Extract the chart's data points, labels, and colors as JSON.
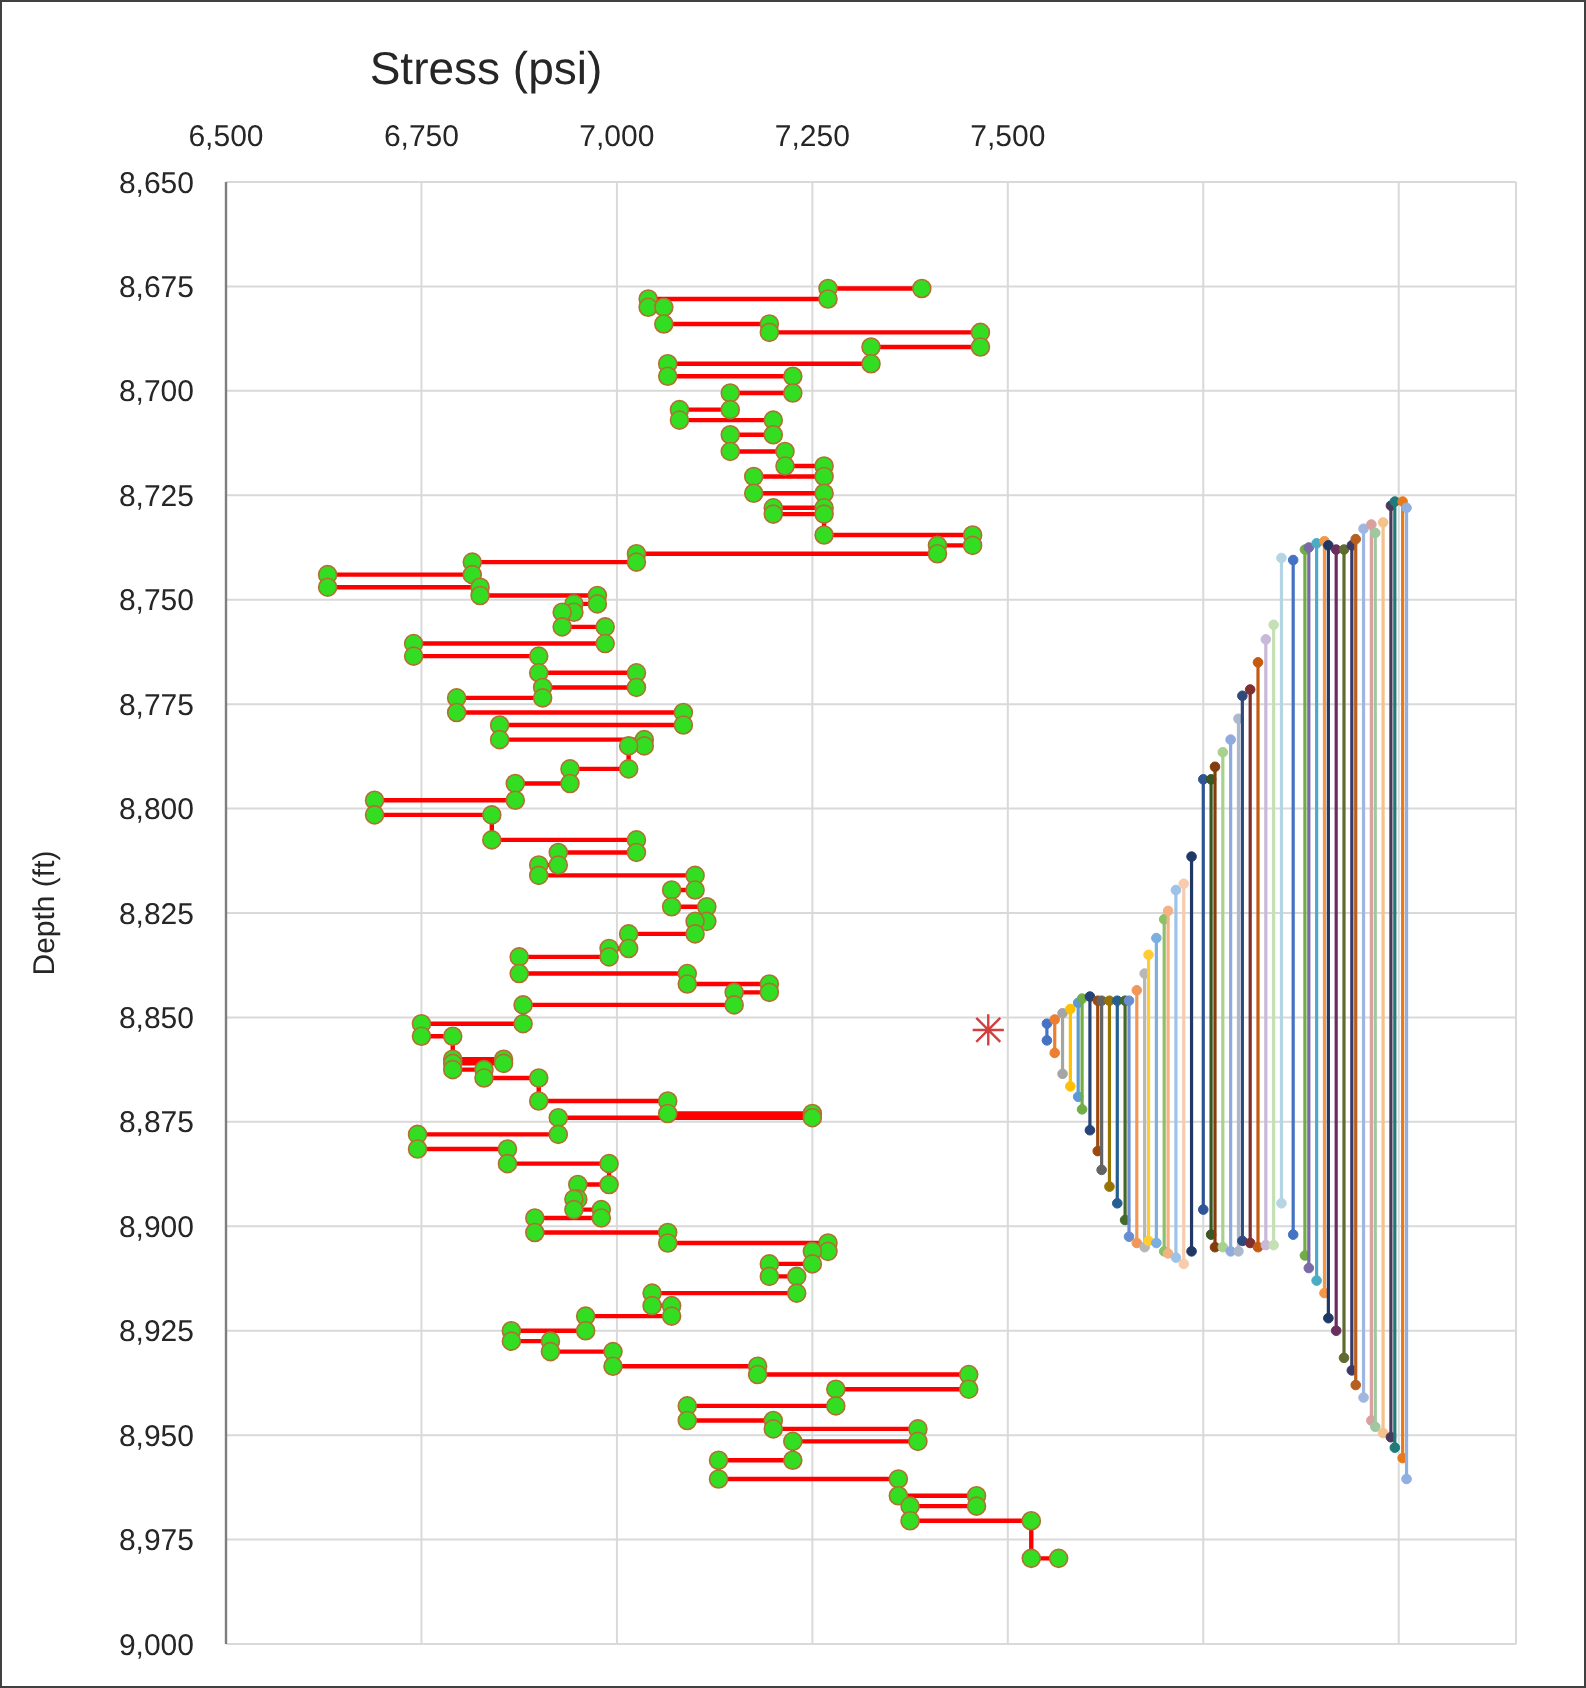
{
  "chart_data": {
    "type": "line",
    "xlabel": "Stress (psi)",
    "ylabel": "Depth (ft)",
    "grid": true,
    "xlim": [
      6500,
      8150
    ],
    "xticks": [
      {
        "value": 6500,
        "label": "6,500"
      },
      {
        "value": 6750,
        "label": "6,750"
      },
      {
        "value": 7000,
        "label": "7,000"
      },
      {
        "value": 7250,
        "label": "7,250"
      },
      {
        "value": 7500,
        "label": "7,500"
      },
      {
        "value": 7750,
        "label": null
      },
      {
        "value": 8000,
        "label": null
      }
    ],
    "ylim": [
      9000,
      8650
    ],
    "yticks": [
      {
        "value": 8650,
        "label": "8,650"
      },
      {
        "value": 8675,
        "label": "8,675"
      },
      {
        "value": 8700,
        "label": "8,700"
      },
      {
        "value": 8725,
        "label": "8,725"
      },
      {
        "value": 8750,
        "label": "8,750"
      },
      {
        "value": 8775,
        "label": "8,775"
      },
      {
        "value": 8800,
        "label": "8,800"
      },
      {
        "value": 8825,
        "label": "8,825"
      },
      {
        "value": 8850,
        "label": "8,850"
      },
      {
        "value": 8875,
        "label": "8,875"
      },
      {
        "value": 8900,
        "label": "8,900"
      },
      {
        "value": 8925,
        "label": "8,925"
      },
      {
        "value": 8950,
        "label": "8,950"
      },
      {
        "value": 8975,
        "label": "8,975"
      },
      {
        "value": 9000,
        "label": "9,000"
      }
    ],
    "series": [
      {
        "type": "line",
        "color": "#ff0000",
        "marker": "none",
        "x": [
          7390,
          7270,
          7270,
          7040,
          7040,
          7060,
          7060,
          7195,
          7195,
          7465,
          7465,
          7325,
          7325,
          7065,
          7065,
          7225,
          7225,
          7145,
          7145,
          7080,
          7080,
          7200,
          7200,
          7145,
          7145,
          7215,
          7215,
          7265,
          7265,
          7175,
          7175,
          7265,
          7265,
          7200,
          7200,
          7265,
          7265,
          7455,
          7455,
          7410,
          7410,
          7025,
          7025,
          6815,
          6815,
          6630,
          6630,
          6825,
          6825,
          6975,
          6975,
          6945,
          6945,
          6930,
          6930,
          6985,
          6985,
          6740,
          6740,
          6900,
          6900,
          7025,
          7025,
          6905,
          6905,
          6795,
          6795,
          7085,
          7085,
          6850,
          6850,
          7035,
          7035,
          7015,
          7015,
          6940,
          6940,
          6870,
          6870,
          6690,
          6690,
          6840,
          6840,
          7025,
          7025,
          6925,
          6925,
          6900,
          6900,
          7100,
          7100,
          7070,
          7070,
          7115,
          7115,
          7100,
          7100,
          7015,
          7015,
          6990,
          6990,
          6875,
          6875,
          7090,
          7090,
          7195,
          7195,
          7150,
          7150,
          6880,
          6880,
          6750,
          6750,
          6790,
          6790,
          6855,
          6855,
          6790,
          6790,
          6830,
          6830,
          6900,
          6900,
          7065,
          7065,
          7250,
          7250,
          6925,
          6925,
          6745,
          6745,
          6860,
          6860,
          6990,
          6990,
          6950,
          6950,
          6945,
          6945,
          6980,
          6980,
          6895,
          6895,
          7065,
          7065,
          7270,
          7270,
          7250,
          7250,
          7195,
          7195,
          7230,
          7230,
          7045,
          7045,
          7070,
          7070,
          6960,
          6960,
          6865,
          6865,
          6915,
          6915,
          6995,
          6995,
          7180,
          7180,
          7450,
          7450,
          7280,
          7280,
          7090,
          7090,
          7200,
          7200,
          7385,
          7385,
          7225,
          7225,
          7130,
          7130,
          7360,
          7360,
          7460,
          7460,
          7375,
          7375,
          7530,
          7530,
          7565
        ],
        "values": [
          8675.5,
          8675.5,
          8678,
          8678,
          8680,
          8680,
          8684,
          8684,
          8686,
          8686,
          8689.5,
          8689.5,
          8693.5,
          8693.5,
          8696.5,
          8696.5,
          8700.5,
          8700.5,
          8704.5,
          8704.5,
          8707,
          8707,
          8710.5,
          8710.5,
          8714.5,
          8714.5,
          8718,
          8718,
          8720.5,
          8720.5,
          8724.5,
          8724.5,
          8728,
          8728,
          8729.5,
          8729.5,
          8734.5,
          8734.5,
          8737,
          8737,
          8739,
          8739,
          8741,
          8741,
          8744,
          8744,
          8747,
          8747,
          8749,
          8749,
          8751,
          8751,
          8753,
          8753,
          8756.5,
          8756.5,
          8760.5,
          8760.5,
          8763.5,
          8763.5,
          8767.5,
          8767.5,
          8771,
          8771,
          8773.5,
          8773.5,
          8777,
          8777,
          8780,
          8780,
          8783.5,
          8783.5,
          8785,
          8785,
          8790.5,
          8790.5,
          8794,
          8794,
          8798,
          8798,
          8801.5,
          8801.5,
          8807.5,
          8807.5,
          8810.5,
          8810.5,
          8813.5,
          8813.5,
          8816,
          8816,
          8819.5,
          8819.5,
          8823.5,
          8823.5,
          8827,
          8827,
          8830,
          8830,
          8833.5,
          8833.5,
          8835.5,
          8835.5,
          8839.5,
          8839.5,
          8842,
          8842,
          8844,
          8844,
          8847,
          8847,
          8851.5,
          8851.5,
          8854.5,
          8854.5,
          8860,
          8860,
          8861,
          8861,
          8862.5,
          8862.5,
          8864.5,
          8864.5,
          8870,
          8870,
          8873,
          8873,
          8874,
          8874,
          8878,
          8878,
          8881.5,
          8881.5,
          8885,
          8885,
          8890,
          8890,
          8893.5,
          8893.5,
          8896,
          8896,
          8898,
          8898,
          8901.5,
          8901.5,
          8904,
          8904,
          8906,
          8906,
          8909,
          8909,
          8912,
          8912,
          8916,
          8916,
          8919,
          8919,
          8921.5,
          8921.5,
          8925,
          8925,
          8927.5,
          8927.5,
          8930,
          8930,
          8933.5,
          8933.5,
          8935.5,
          8935.5,
          8939,
          8939,
          8943,
          8943,
          8946.5,
          8946.5,
          8948.5,
          8948.5,
          8951.5,
          8951.5,
          8956,
          8956,
          8960.5,
          8960.5,
          8964.5,
          8964.5,
          8967,
          8967,
          8970.5,
          8970.5,
          8979.5,
          8979.5
        ]
      },
      {
        "type": "scatter",
        "color": "#33dd22",
        "marker": "circle",
        "x": [
          7390,
          7270,
          7270,
          7040,
          7040,
          7060,
          7060,
          7195,
          7195,
          7465,
          7465,
          7325,
          7325,
          7065,
          7065,
          7225,
          7225,
          7145,
          7145,
          7080,
          7080,
          7200,
          7200,
          7145,
          7145,
          7215,
          7215,
          7265,
          7265,
          7175,
          7175,
          7265,
          7265,
          7200,
          7200,
          7265,
          7265,
          7455,
          7455,
          7410,
          7410,
          7025,
          7025,
          6815,
          6815,
          6630,
          6630,
          6825,
          6825,
          6975,
          6975,
          6945,
          6945,
          6930,
          6930,
          6985,
          6985,
          6740,
          6740,
          6900,
          6900,
          7025,
          7025,
          6905,
          6905,
          6795,
          6795,
          7085,
          7085,
          6850,
          6850,
          7035,
          7035,
          7015,
          7015,
          6940,
          6940,
          6870,
          6870,
          6690,
          6690,
          6840,
          6840,
          7025,
          7025,
          6925,
          6925,
          6900,
          6900,
          7100,
          7100,
          7070,
          7070,
          7115,
          7115,
          7100,
          7100,
          7015,
          7015,
          6990,
          6990,
          6875,
          6875,
          7090,
          7090,
          7195,
          7195,
          7150,
          7150,
          6880,
          6880,
          6750,
          6750,
          6790,
          6790,
          6855,
          6855,
          6790,
          6790,
          6830,
          6830,
          6900,
          6900,
          7065,
          7065,
          7250,
          7250,
          6925,
          6925,
          6745,
          6745,
          6860,
          6860,
          6990,
          6990,
          6950,
          6950,
          6945,
          6945,
          6980,
          6980,
          6895,
          6895,
          7065,
          7065,
          7270,
          7270,
          7250,
          7250,
          7195,
          7195,
          7230,
          7230,
          7045,
          7045,
          7070,
          7070,
          6960,
          6960,
          6865,
          6865,
          6915,
          6915,
          6995,
          6995,
          7180,
          7180,
          7450,
          7450,
          7280,
          7280,
          7090,
          7090,
          7200,
          7200,
          7385,
          7385,
          7225,
          7225,
          7130,
          7130,
          7360,
          7360,
          7460,
          7460,
          7375,
          7375,
          7530,
          7530,
          7565
        ],
        "values": [
          8675.5,
          8675.5,
          8678,
          8678,
          8680,
          8680,
          8684,
          8684,
          8686,
          8686,
          8689.5,
          8689.5,
          8693.5,
          8693.5,
          8696.5,
          8696.5,
          8700.5,
          8700.5,
          8704.5,
          8704.5,
          8707,
          8707,
          8710.5,
          8710.5,
          8714.5,
          8714.5,
          8718,
          8718,
          8720.5,
          8720.5,
          8724.5,
          8724.5,
          8728,
          8728,
          8729.5,
          8729.5,
          8734.5,
          8734.5,
          8737,
          8737,
          8739,
          8739,
          8741,
          8741,
          8744,
          8744,
          8747,
          8747,
          8749,
          8749,
          8751,
          8751,
          8753,
          8753,
          8756.5,
          8756.5,
          8760.5,
          8760.5,
          8763.5,
          8763.5,
          8767.5,
          8767.5,
          8771,
          8771,
          8773.5,
          8773.5,
          8777,
          8777,
          8780,
          8780,
          8783.5,
          8783.5,
          8785,
          8785,
          8790.5,
          8790.5,
          8794,
          8794,
          8798,
          8798,
          8801.5,
          8801.5,
          8807.5,
          8807.5,
          8810.5,
          8810.5,
          8813.5,
          8813.5,
          8816,
          8816,
          8819.5,
          8819.5,
          8823.5,
          8823.5,
          8827,
          8827,
          8830,
          8830,
          8833.5,
          8833.5,
          8835.5,
          8835.5,
          8839.5,
          8839.5,
          8842,
          8842,
          8844,
          8844,
          8847,
          8847,
          8851.5,
          8851.5,
          8854.5,
          8854.5,
          8860,
          8860,
          8861,
          8861,
          8862.5,
          8862.5,
          8864.5,
          8864.5,
          8870,
          8870,
          8873,
          8873,
          8874,
          8874,
          8878,
          8878,
          8881.5,
          8881.5,
          8885,
          8885,
          8890,
          8890,
          8893.5,
          8893.5,
          8896,
          8896,
          8898,
          8898,
          8901.5,
          8901.5,
          8904,
          8904,
          8906,
          8906,
          8909,
          8909,
          8912,
          8912,
          8916,
          8916,
          8919,
          8919,
          8921.5,
          8921.5,
          8925,
          8925,
          8927.5,
          8927.5,
          8930,
          8930,
          8933.5,
          8933.5,
          8935.5,
          8935.5,
          8939,
          8939,
          8943,
          8943,
          8946.5,
          8946.5,
          8948.5,
          8948.5,
          8951.5,
          8951.5,
          8956,
          8956,
          8960.5,
          8960.5,
          8964.5,
          8964.5,
          8967,
          8967,
          8970.5,
          8970.5,
          8979.5,
          8979.5
        ]
      },
      {
        "type": "scatter",
        "color": "#d04040",
        "marker": "cross",
        "x": [
          7475
        ],
        "values": [
          8853
        ]
      },
      {
        "type": "line",
        "color": "#4472c4",
        "marker": "circle",
        "x": [
          7550,
          7550
        ],
        "values": [
          8851.5,
          8855.5
        ]
      },
      {
        "type": "line",
        "color": "#ed7d31",
        "marker": "circle",
        "x": [
          7560,
          7560
        ],
        "values": [
          8850.5,
          8858.5
        ]
      },
      {
        "type": "line",
        "color": "#a5a5a5",
        "marker": "circle",
        "x": [
          7570,
          7570
        ],
        "values": [
          8849,
          8863.5
        ]
      },
      {
        "type": "line",
        "color": "#ffc000",
        "marker": "circle",
        "x": [
          7580,
          7580
        ],
        "values": [
          8848,
          8866.5
        ]
      },
      {
        "type": "line",
        "color": "#5b9bd5",
        "marker": "circle",
        "x": [
          7590,
          7590
        ],
        "values": [
          8846.5,
          8869
        ]
      },
      {
        "type": "line",
        "color": "#70ad47",
        "marker": "circle",
        "x": [
          7595,
          7595
        ],
        "values": [
          8845.5,
          8872
        ]
      },
      {
        "type": "line",
        "color": "#264478",
        "marker": "circle",
        "x": [
          7605,
          7605
        ],
        "values": [
          8845,
          8877
        ]
      },
      {
        "type": "line",
        "color": "#9e480e",
        "marker": "circle",
        "x": [
          7615,
          7615
        ],
        "values": [
          8846,
          8882
        ]
      },
      {
        "type": "line",
        "color": "#636363",
        "marker": "circle",
        "x": [
          7620,
          7620
        ],
        "values": [
          8846,
          8886.5
        ]
      },
      {
        "type": "line",
        "color": "#997300",
        "marker": "circle",
        "x": [
          7630,
          7630
        ],
        "values": [
          8846,
          8890.5
        ]
      },
      {
        "type": "line",
        "color": "#255e91",
        "marker": "circle",
        "x": [
          7640,
          7640
        ],
        "values": [
          8846,
          8894.5
        ]
      },
      {
        "type": "line",
        "color": "#43682b",
        "marker": "circle",
        "x": [
          7650,
          7650
        ],
        "values": [
          8846,
          8898.5
        ]
      },
      {
        "type": "line",
        "color": "#698ed0",
        "marker": "circle",
        "x": [
          7655,
          7655
        ],
        "values": [
          8846,
          8902.5
        ]
      },
      {
        "type": "line",
        "color": "#f1975a",
        "marker": "circle",
        "x": [
          7665,
          7665
        ],
        "values": [
          8843.5,
          8904
        ]
      },
      {
        "type": "line",
        "color": "#b7b7b7",
        "marker": "circle",
        "x": [
          7675,
          7675
        ],
        "values": [
          8839.5,
          8905
        ]
      },
      {
        "type": "line",
        "color": "#ffcd33",
        "marker": "circle",
        "x": [
          7680,
          7680
        ],
        "values": [
          8835,
          8903.5
        ]
      },
      {
        "type": "line",
        "color": "#7cafdd",
        "marker": "circle",
        "x": [
          7690,
          7690
        ],
        "values": [
          8831,
          8904
        ]
      },
      {
        "type": "line",
        "color": "#8cc168",
        "marker": "circle",
        "x": [
          7700,
          7700
        ],
        "values": [
          8826.5,
          8906
        ]
      },
      {
        "type": "line",
        "color": "#f4b183",
        "marker": "circle",
        "x": [
          7705,
          7705
        ],
        "values": [
          8824.5,
          8906.5
        ]
      },
      {
        "type": "line",
        "color": "#9dc3e6",
        "marker": "circle",
        "x": [
          7715,
          7715
        ],
        "values": [
          8819.5,
          8907.5
        ]
      },
      {
        "type": "line",
        "color": "#f8cbad",
        "marker": "circle",
        "x": [
          7725,
          7725
        ],
        "values": [
          8818,
          8909
        ]
      },
      {
        "type": "line",
        "color": "#203864",
        "marker": "circle",
        "x": [
          7735,
          7735
        ],
        "values": [
          8811.5,
          8906
        ]
      },
      {
        "type": "line",
        "color": "#2f5597",
        "marker": "circle",
        "x": [
          7750,
          7750
        ],
        "values": [
          8793,
          8896
        ]
      },
      {
        "type": "line",
        "color": "#385723",
        "marker": "circle",
        "x": [
          7760,
          7760
        ],
        "values": [
          8793,
          8902
        ]
      },
      {
        "type": "line",
        "color": "#843c0c",
        "marker": "circle",
        "x": [
          7765,
          7765
        ],
        "values": [
          8790,
          8905
        ]
      },
      {
        "type": "line",
        "color": "#a9d18e",
        "marker": "circle",
        "x": [
          7775,
          7775
        ],
        "values": [
          8786.5,
          8905
        ]
      },
      {
        "type": "line",
        "color": "#8faadc",
        "marker": "circle",
        "x": [
          7785,
          7785
        ],
        "values": [
          8783.5,
          8906
        ]
      },
      {
        "type": "line",
        "color": "#adb9ca",
        "marker": "circle",
        "x": [
          7795,
          7795
        ],
        "values": [
          8778.5,
          8906
        ]
      },
      {
        "type": "line",
        "color": "#2e4a7d",
        "marker": "circle",
        "x": [
          7800,
          7800
        ],
        "values": [
          8773,
          8903.5
        ]
      },
      {
        "type": "line",
        "color": "#7f2f2f",
        "marker": "circle",
        "x": [
          7810,
          7810
        ],
        "values": [
          8771.5,
          8904
        ]
      },
      {
        "type": "line",
        "color": "#c55a11",
        "marker": "circle",
        "x": [
          7820,
          7820
        ],
        "values": [
          8765,
          8905
        ]
      },
      {
        "type": "line",
        "color": "#c9b8d8",
        "marker": "circle",
        "x": [
          7830,
          7830
        ],
        "values": [
          8759.5,
          8904.5
        ]
      },
      {
        "type": "line",
        "color": "#c5e0b4",
        "marker": "circle",
        "x": [
          7840,
          7840
        ],
        "values": [
          8756,
          8904.5
        ]
      },
      {
        "type": "line",
        "color": "#b4d6e4",
        "marker": "circle",
        "x": [
          7850,
          7850
        ],
        "values": [
          8740,
          8894.5
        ]
      },
      {
        "type": "line",
        "color": "#4472c4",
        "marker": "circle",
        "x": [
          7865,
          7865
        ],
        "values": [
          8740.5,
          8902
        ]
      },
      {
        "type": "line",
        "color": "#70ad47",
        "marker": "circle",
        "x": [
          7880,
          7880
        ],
        "values": [
          8738,
          8907
        ]
      },
      {
        "type": "line",
        "color": "#7b6aa8",
        "marker": "circle",
        "x": [
          7885,
          7885
        ],
        "values": [
          8737.5,
          8910
        ]
      },
      {
        "type": "line",
        "color": "#4bacc6",
        "marker": "circle",
        "x": [
          7895,
          7895
        ],
        "values": [
          8736.5,
          8913
        ]
      },
      {
        "type": "line",
        "color": "#f79646",
        "marker": "circle",
        "x": [
          7905,
          7905
        ],
        "values": [
          8736,
          8916
        ]
      },
      {
        "type": "line",
        "color": "#1f3864",
        "marker": "circle",
        "x": [
          7910,
          7910
        ],
        "values": [
          8737,
          8922
        ]
      },
      {
        "type": "line",
        "color": "#6b2f5f",
        "marker": "circle",
        "x": [
          7920,
          7920
        ],
        "values": [
          8738,
          8925
        ]
      },
      {
        "type": "line",
        "color": "#5f6b2f",
        "marker": "circle",
        "x": [
          7930,
          7930
        ],
        "values": [
          8738,
          8931.5
        ]
      },
      {
        "type": "line",
        "color": "#3b3b6b",
        "marker": "circle",
        "x": [
          7940,
          7940
        ],
        "values": [
          8737,
          8934.5
        ]
      },
      {
        "type": "line",
        "color": "#b75f1f",
        "marker": "circle",
        "x": [
          7945,
          7945
        ],
        "values": [
          8735.5,
          8938
        ]
      },
      {
        "type": "line",
        "color": "#9fb7e0",
        "marker": "circle",
        "x": [
          7955,
          7955
        ],
        "values": [
          8733,
          8941
        ]
      },
      {
        "type": "line",
        "color": "#d9a0a0",
        "marker": "circle",
        "x": [
          7965,
          7965
        ],
        "values": [
          8732,
          8946.5
        ]
      },
      {
        "type": "line",
        "color": "#a0c8a0",
        "marker": "circle",
        "x": [
          7970,
          7970
        ],
        "values": [
          8734,
          8948
        ]
      },
      {
        "type": "line",
        "color": "#f4c28c",
        "marker": "circle",
        "x": [
          7980,
          7980
        ],
        "values": [
          8731.5,
          8949.5
        ]
      },
      {
        "type": "line",
        "color": "#4a3b5c",
        "marker": "circle",
        "x": [
          7990,
          7990
        ],
        "values": [
          8727.5,
          8950.5
        ]
      },
      {
        "type": "line",
        "color": "#1f7a7a",
        "marker": "circle",
        "x": [
          7995,
          7995
        ],
        "values": [
          8726.5,
          8953
        ]
      },
      {
        "type": "line",
        "color": "#e87a1e",
        "marker": "circle",
        "x": [
          8005,
          8005
        ],
        "values": [
          8726.5,
          8955.5
        ]
      },
      {
        "type": "line",
        "color": "#8fb0e0",
        "marker": "circle",
        "x": [
          8010,
          8010
        ],
        "values": [
          8728,
          8960.5
        ]
      }
    ]
  }
}
